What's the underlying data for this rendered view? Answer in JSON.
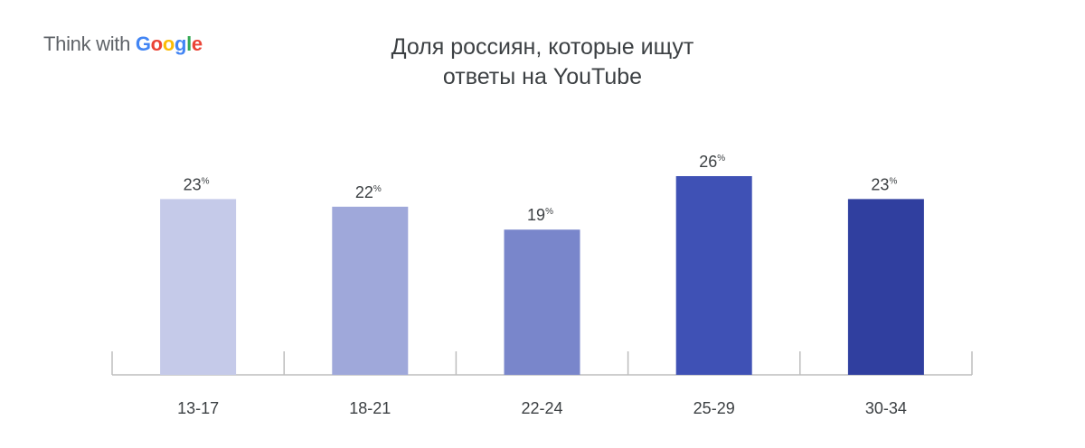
{
  "brand": {
    "prefix": "Think with ",
    "letters": [
      "G",
      "o",
      "o",
      "g",
      "l",
      "e"
    ],
    "colors": [
      "#4285F4",
      "#EA4335",
      "#FBBC05",
      "#4285F4",
      "#34A853",
      "#EA4335"
    ]
  },
  "chart_data": {
    "type": "bar",
    "title_lines": [
      "Доля россиян, которые ищут",
      "ответы на YouTube"
    ],
    "categories": [
      "13-17",
      "18-21",
      "22-24",
      "25-29",
      "30-34"
    ],
    "values": [
      23,
      22,
      19,
      26,
      23
    ],
    "value_labels": [
      "23",
      "22",
      "19",
      "26",
      "23"
    ],
    "value_suffix": "%",
    "colors": [
      "#c5cae9",
      "#9fa8da",
      "#7986cb",
      "#3f51b5",
      "#303f9f"
    ],
    "ylim": [
      0,
      30
    ],
    "grid": false,
    "xlabel": "",
    "ylabel": ""
  }
}
